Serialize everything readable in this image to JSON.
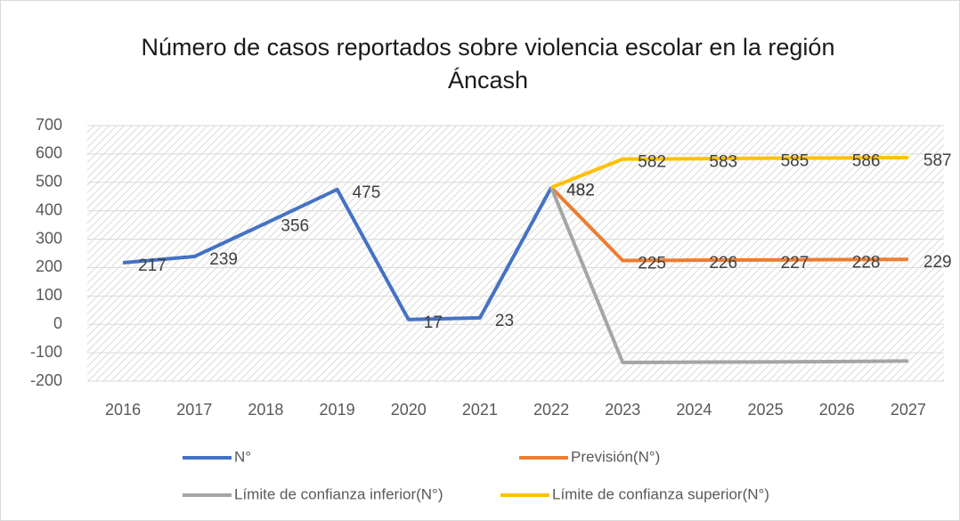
{
  "chart_data": {
    "type": "line",
    "title": [
      "Número de casos reportados sobre violencia escolar en la región",
      "Áncash"
    ],
    "categories": [
      "2016",
      "2017",
      "2018",
      "2019",
      "2020",
      "2021",
      "2022",
      "2023",
      "2024",
      "2025",
      "2026",
      "2027"
    ],
    "series": [
      {
        "name": "N°",
        "color": "#4472c4",
        "data_labels": true,
        "values": [
          217,
          239,
          356,
          475,
          17,
          23,
          482,
          null,
          null,
          null,
          null,
          null
        ]
      },
      {
        "name": "Previsión(N°)",
        "color": "#ed7d31",
        "data_labels": true,
        "values": [
          null,
          null,
          null,
          null,
          null,
          null,
          482,
          225,
          226,
          227,
          228,
          229
        ]
      },
      {
        "name": "Límite de confianza inferior(N°)",
        "color": "#a5a5a5",
        "data_labels": false,
        "values": [
          null,
          null,
          null,
          null,
          null,
          null,
          482,
          -134,
          -133,
          -132,
          -131,
          -129
        ]
      },
      {
        "name": "Límite de confianza superior(N°)",
        "color": "#ffc000",
        "data_labels": true,
        "values": [
          null,
          null,
          null,
          null,
          null,
          null,
          482,
          582,
          583,
          585,
          586,
          587
        ]
      }
    ],
    "ylim": [
      -200,
      700
    ],
    "yticks": [
      -200,
      -100,
      0,
      100,
      200,
      300,
      400,
      500,
      600,
      700
    ],
    "grid": true,
    "legend": "bottom"
  }
}
